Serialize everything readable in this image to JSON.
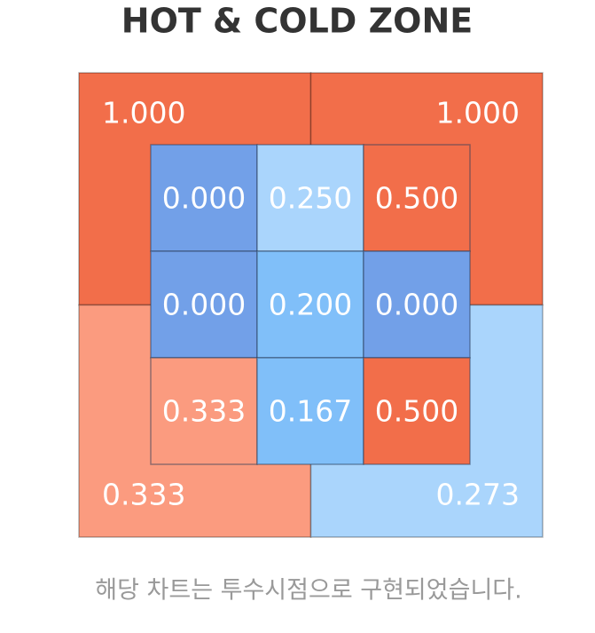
{
  "chart_data": {
    "type": "zone",
    "title": "HOT & COLD ZONE",
    "outer": {
      "values": [
        1,
        1,
        0.333,
        0.273
      ],
      "value_labels": [
        "1.000",
        "1.000",
        "0.333",
        "0.273"
      ],
      "colors": [
        "#f26e4a",
        "#f26e4a",
        "#fb9b7f",
        "#aad5fc"
      ]
    },
    "inner": {
      "values": [
        0,
        0.25,
        0.5,
        0,
        0.2,
        0,
        0.333,
        0.167,
        0.5
      ],
      "value_labels": [
        "0.000",
        "0.250",
        "0.500",
        "0.000",
        "0.200",
        "0.000",
        "0.333",
        "0.167",
        "0.500"
      ],
      "colors": [
        "#72a0e8",
        "#aad5fc",
        "#f26e4a",
        "#72a0e8",
        "#80bff9",
        "#72a0e8",
        "#fb9b7f",
        "#80bff9",
        "#f26e4a"
      ]
    },
    "footnote": "해당 차트는 투수시점으로 구현되었습니다."
  }
}
